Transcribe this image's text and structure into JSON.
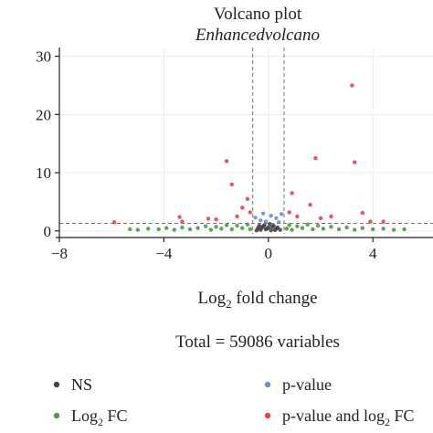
{
  "chart_data": {
    "type": "scatter",
    "title": "Volcano plot",
    "subtitle": "Enhancedvolcano",
    "xlabel": "Log2 fold change",
    "ylabel": "",
    "caption": "Total = 59086 variables",
    "xlim": [
      -8,
      6.3
    ],
    "ylim": [
      -0.5,
      31.5
    ],
    "xticks": [
      -8,
      -4,
      0,
      4
    ],
    "yticks": [
      0,
      10,
      20,
      30
    ],
    "grid": true,
    "fc_cutoff": [
      -0.6,
      0.6
    ],
    "p_cutoff": 1.3,
    "legend_position": "bottom",
    "series": [
      {
        "name": "NS",
        "color": "#444444",
        "points": [
          [
            -0.4,
            0.5
          ],
          [
            -0.3,
            0.2
          ],
          [
            -0.2,
            0.8
          ],
          [
            -0.1,
            0.3
          ],
          [
            0.0,
            0.6
          ],
          [
            0.1,
            0.1
          ],
          [
            0.2,
            0.9
          ],
          [
            0.3,
            0.4
          ],
          [
            -0.45,
            0.1
          ],
          [
            0.45,
            0.2
          ],
          [
            -0.15,
            1.0
          ],
          [
            0.15,
            0.7
          ],
          [
            0.05,
            1.2
          ],
          [
            -0.05,
            0.4
          ],
          [
            0.35,
            0.6
          ],
          [
            -0.35,
            0.9
          ],
          [
            0.25,
            0.15
          ],
          [
            -0.25,
            0.55
          ]
        ]
      },
      {
        "name": "Log2 FC",
        "color": "#4d9a45",
        "points": [
          [
            -5.3,
            0.3
          ],
          [
            -5.0,
            0.2
          ],
          [
            -4.6,
            0.4
          ],
          [
            -4.2,
            0.3
          ],
          [
            -3.9,
            0.5
          ],
          [
            -3.6,
            0.2
          ],
          [
            -3.3,
            0.6
          ],
          [
            -3.0,
            0.3
          ],
          [
            -2.7,
            0.5
          ],
          [
            -2.4,
            0.8
          ],
          [
            -2.2,
            0.2
          ],
          [
            -2.0,
            0.7
          ],
          [
            -1.8,
            0.4
          ],
          [
            -1.6,
            1.0
          ],
          [
            -1.4,
            0.3
          ],
          [
            -1.2,
            0.9
          ],
          [
            -1.0,
            0.5
          ],
          [
            -0.8,
            1.1
          ],
          [
            -0.7,
            0.3
          ],
          [
            0.7,
            0.4
          ],
          [
            0.8,
            1.0
          ],
          [
            0.9,
            0.2
          ],
          [
            1.1,
            0.8
          ],
          [
            1.3,
            0.5
          ],
          [
            1.5,
            1.1
          ],
          [
            1.7,
            0.3
          ],
          [
            1.9,
            0.9
          ],
          [
            2.1,
            0.4
          ],
          [
            2.4,
            0.7
          ],
          [
            2.7,
            0.3
          ],
          [
            3.0,
            0.6
          ],
          [
            3.3,
            0.2
          ],
          [
            3.6,
            0.5
          ],
          [
            4.0,
            0.3
          ],
          [
            4.4,
            0.4
          ],
          [
            4.8,
            0.2
          ],
          [
            5.2,
            0.3
          ]
        ]
      },
      {
        "name": "p-value",
        "color": "#6a8fd0",
        "points": [
          [
            -0.3,
            1.8
          ],
          [
            0.5,
            2.9
          ],
          [
            0.3,
            2.2
          ],
          [
            -0.1,
            1.6
          ],
          [
            0.1,
            2.6
          ],
          [
            -0.5,
            2.3
          ],
          [
            0.4,
            1.5
          ],
          [
            -0.2,
            3.0
          ]
        ]
      },
      {
        "name": "p-value and log2 FC",
        "color": "#e0454f",
        "points": [
          [
            -5.9,
            1.5
          ],
          [
            -3.4,
            2.4
          ],
          [
            -3.3,
            1.6
          ],
          [
            -2.3,
            2.1
          ],
          [
            -2.0,
            2.0
          ],
          [
            -1.6,
            12.0
          ],
          [
            -1.4,
            8.0
          ],
          [
            -1.2,
            2.5
          ],
          [
            -1.0,
            4.0
          ],
          [
            -0.8,
            5.5
          ],
          [
            -0.7,
            3.2
          ],
          [
            0.8,
            3.2
          ],
          [
            0.9,
            6.5
          ],
          [
            1.1,
            2.5
          ],
          [
            1.6,
            4.5
          ],
          [
            1.8,
            12.5
          ],
          [
            2.0,
            2.2
          ],
          [
            2.4,
            2.5
          ],
          [
            3.2,
            25.0
          ],
          [
            3.3,
            11.8
          ],
          [
            3.6,
            3.1
          ],
          [
            3.9,
            1.6
          ],
          [
            4.4,
            1.6
          ]
        ]
      }
    ]
  },
  "legend": [
    {
      "label": "NS",
      "color": "#444444"
    },
    {
      "label": "p-value",
      "color": "#6a8fd0"
    },
    {
      "label": "Log",
      "sub": "2",
      "label_after": " FC",
      "color": "#4d9a45"
    },
    {
      "label": "p-value and log",
      "sub": "2",
      "label_after": " FC",
      "color": "#e0454f"
    }
  ],
  "xlabel_parts": {
    "main": "Log",
    "sub": "2",
    "after": " fold change"
  }
}
